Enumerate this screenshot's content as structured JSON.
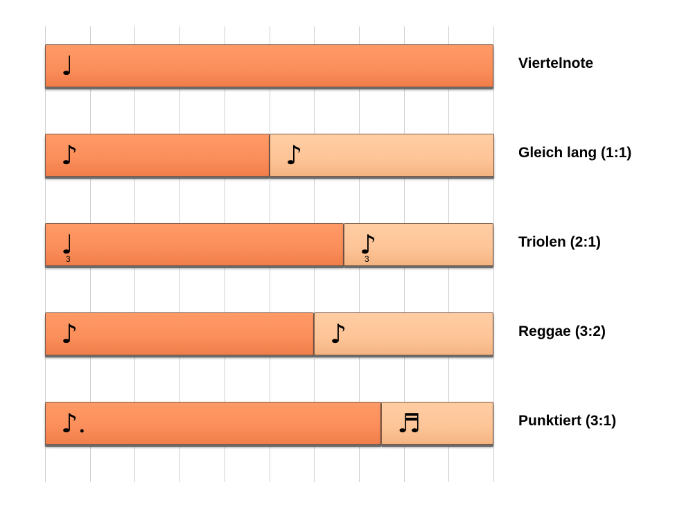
{
  "grid": {
    "divisions": 10
  },
  "rows": [
    {
      "label": "Viertelnote",
      "segments": [
        {
          "fraction": 1,
          "tone": "primary",
          "note": "♩",
          "tuplet": ""
        }
      ]
    },
    {
      "label": "Gleich lang (1:1)",
      "segments": [
        {
          "fraction": 0.5,
          "tone": "primary",
          "note": "♪",
          "tuplet": ""
        },
        {
          "fraction": 0.5,
          "tone": "secondary",
          "note": "♪",
          "tuplet": ""
        }
      ]
    },
    {
      "label": "Triolen (2:1)",
      "segments": [
        {
          "fraction": 0.6667,
          "tone": "primary",
          "note": "♩",
          "tuplet": "3"
        },
        {
          "fraction": 0.3333,
          "tone": "secondary",
          "note": "♪",
          "tuplet": "3"
        }
      ]
    },
    {
      "label": "Reggae (3:2)",
      "segments": [
        {
          "fraction": 0.6,
          "tone": "primary",
          "note": "♪",
          "tuplet": ""
        },
        {
          "fraction": 0.4,
          "tone": "secondary",
          "note": "♪",
          "tuplet": ""
        }
      ]
    },
    {
      "label": "Punktiert (3:1)",
      "segments": [
        {
          "fraction": 0.75,
          "tone": "primary",
          "note": "♪.",
          "tuplet": ""
        },
        {
          "fraction": 0.25,
          "tone": "secondary",
          "note": "♬",
          "tuplet": ""
        }
      ]
    }
  ],
  "colors": {
    "primary": "#fb8f5c",
    "secondary": "#fdc497",
    "grid": "#cfcfcf"
  }
}
